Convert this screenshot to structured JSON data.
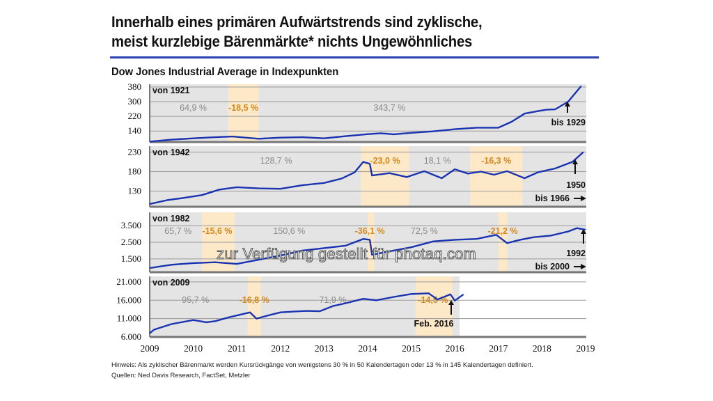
{
  "header": {
    "title_line1": "Innerhalb eines primären Aufwärtstrends sind zyklische,",
    "title_line2": "meist kurzlebige Bärenmärkte* nichts Ungewöhnliches",
    "subtitle": "Dow Jones Industrial Average in Indexpunkten"
  },
  "footer": {
    "note": "Hinweis: Als zyklischer Bärenmarkt werden Kursrückgänge von wenigstens 30 % in 50 Kalendertagen oder 13 % in 145 Kalendertagen definiert.",
    "sources": "Quellen: Ned Davis Research, FactSet, Metzler"
  },
  "watermark": "zur Verfügung gestellt für photaq.com",
  "colors": {
    "line": "#1a33b0",
    "panel_bg": "#e4e4e4",
    "bear_band": "#fde9c8",
    "bull_label": "#8a8a8a",
    "bear_label": "#d4871c",
    "rule": "#2a3fb0"
  },
  "chart_data": {
    "type": "line",
    "title": "Dow Jones Industrial Average in Indexpunkten",
    "x_axis": {
      "description": "shared relative time axis, aligned to the 2009 panel",
      "ticks": [
        "2009",
        "2010",
        "2011",
        "2012",
        "2013",
        "2014",
        "2015",
        "2016",
        "2017",
        "2018",
        "2019"
      ],
      "range": [
        2009,
        2019
      ]
    },
    "panels": [
      {
        "label": "von 1921",
        "end_label": "bis 1929",
        "yticks": [
          "380",
          "300",
          "220",
          "140"
        ],
        "ylim": [
          80,
          395
        ],
        "bands": [
          {
            "type": "bear",
            "from": 2010.8,
            "to": 2011.5,
            "label": "-18,5 %"
          }
        ],
        "phase_labels": [
          {
            "type": "bull",
            "x": 2010.0,
            "label": "64,9 %"
          },
          {
            "type": "bear",
            "x": 2011.15,
            "label": "-18,5 %"
          },
          {
            "type": "bull",
            "x": 2014.5,
            "label": "343,7 %"
          }
        ],
        "series": {
          "x": [
            2009,
            2009.5,
            2010,
            2010.5,
            2010.9,
            2011.2,
            2011.5,
            2012,
            2012.5,
            2013,
            2013.5,
            2014,
            2014.3,
            2014.6,
            2015,
            2015.5,
            2016,
            2016.5,
            2017,
            2017.3,
            2017.6,
            2017.9,
            2018.1,
            2018.3,
            2018.6,
            2018.9
          ],
          "y": [
            82,
            93,
            100,
            106,
            110,
            104,
            98,
            104,
            106,
            100,
            112,
            123,
            128,
            122,
            130,
            138,
            150,
            158,
            158,
            190,
            235,
            248,
            256,
            258,
            300,
            385
          ]
        }
      },
      {
        "label": "von 1942",
        "end_label": "1950",
        "end_label2": "bis 1966",
        "yticks": [
          "230",
          "180",
          "130"
        ],
        "ylim": [
          90,
          245
        ],
        "bands": [
          {
            "type": "bear",
            "from": 2013.85,
            "to": 2014.95,
            "label": "-23,0 %"
          },
          {
            "type": "bear",
            "from": 2016.35,
            "to": 2017.55,
            "label": "-16,3 %"
          }
        ],
        "phase_labels": [
          {
            "type": "bull",
            "x": 2011.9,
            "label": "128,7 %"
          },
          {
            "type": "bear",
            "x": 2014.4,
            "label": "-23,0 %"
          },
          {
            "type": "bull",
            "x": 2015.6,
            "label": "18,1 %"
          },
          {
            "type": "bear",
            "x": 2016.95,
            "label": "-16,3 %"
          }
        ],
        "series": {
          "x": [
            2009,
            2009.4,
            2009.8,
            2010.2,
            2010.6,
            2011,
            2011.5,
            2012,
            2012.5,
            2013,
            2013.4,
            2013.7,
            2013.9,
            2014.05,
            2014.1,
            2014.5,
            2014.9,
            2015.3,
            2015.7,
            2016.0,
            2016.3,
            2016.6,
            2016.9,
            2017.2,
            2017.6,
            2017.9,
            2018.3,
            2018.7,
            2018.95
          ],
          "y": [
            97,
            107,
            113,
            120,
            134,
            140,
            137,
            136,
            145,
            151,
            162,
            178,
            205,
            200,
            170,
            176,
            166,
            181,
            163,
            186,
            175,
            180,
            172,
            181,
            163,
            178,
            188,
            205,
            230
          ]
        }
      },
      {
        "label": "von 1982",
        "end_label": "1992",
        "end_label2": "bis 2000",
        "yticks": [
          "3.500",
          "2.500",
          "1.500"
        ],
        "ylim": [
          700,
          4300
        ],
        "bands": [
          {
            "type": "bear",
            "from": 2010.2,
            "to": 2010.95,
            "label": "-15,6 %"
          },
          {
            "type": "bear",
            "from": 2014.0,
            "to": 2014.15,
            "label": "-36,1 %"
          },
          {
            "type": "bear",
            "from": 2017.0,
            "to": 2017.2,
            "label": "-21,2 %"
          }
        ],
        "phase_labels": [
          {
            "type": "bull",
            "x": 2009.65,
            "label": "65,7 %"
          },
          {
            "type": "bear",
            "x": 2010.55,
            "label": "-15,6 %"
          },
          {
            "type": "bull",
            "x": 2012.2,
            "label": "150,6 %"
          },
          {
            "type": "bear",
            "x": 2014.05,
            "label": "-36,1 %"
          },
          {
            "type": "bull",
            "x": 2015.3,
            "label": "72,5 %"
          },
          {
            "type": "bear",
            "x": 2017.1,
            "label": "-21,2 %"
          }
        ],
        "series": {
          "x": [
            2009,
            2009.5,
            2010,
            2010.5,
            2011,
            2011.5,
            2012,
            2012.5,
            2013,
            2013.5,
            2013.9,
            2014.05,
            2014.1,
            2014.5,
            2015,
            2015.5,
            2016,
            2016.5,
            2016.95,
            2017.2,
            2017.5,
            2017.8,
            2018.2,
            2018.6,
            2018.8,
            2019
          ],
          "y": [
            950,
            1150,
            1250,
            1300,
            1200,
            1450,
            1700,
            2000,
            2150,
            2300,
            2700,
            2650,
            1750,
            1950,
            2200,
            2550,
            2650,
            2700,
            2950,
            2450,
            2650,
            2800,
            2900,
            3150,
            3350,
            3250
          ]
        }
      },
      {
        "label": "von 2009",
        "end_label": "Feb. 2016",
        "yticks": [
          "21.000",
          "16.000",
          "11.000",
          "6.000"
        ],
        "ylim": [
          6000,
          22500
        ],
        "bands": [
          {
            "type": "bear",
            "from": 2011.25,
            "to": 2011.55,
            "label": "-16,8 %"
          },
          {
            "type": "bear",
            "from": 2015.1,
            "to": 2015.95,
            "label": "-14,5 %"
          }
        ],
        "phase_labels": [
          {
            "type": "bull",
            "x": 2010.05,
            "label": "95,7 %"
          },
          {
            "type": "bear",
            "x": 2011.4,
            "label": "-16,8 %"
          },
          {
            "type": "bull",
            "x": 2013.2,
            "label": "71,9 %"
          },
          {
            "type": "bear",
            "x": 2015.5,
            "label": "-14,5 %"
          }
        ],
        "series": {
          "x": [
            2009,
            2009.1,
            2009.5,
            2010,
            2010.3,
            2010.5,
            2010.8,
            2011.3,
            2011.45,
            2011.7,
            2012,
            2012.3,
            2012.6,
            2012.9,
            2013.2,
            2013.5,
            2013.9,
            2014.2,
            2014.6,
            2015,
            2015.4,
            2015.6,
            2015.9,
            2016.0,
            2016.2
          ],
          "y": [
            7000,
            8000,
            9500,
            10600,
            10000,
            10300,
            11300,
            12700,
            11000,
            11800,
            12700,
            12900,
            13100,
            13000,
            14400,
            15200,
            16400,
            16000,
            16900,
            17700,
            17900,
            16200,
            17600,
            15900,
            17600
          ]
        }
      }
    ],
    "annotations": [
      "bis 1929",
      "1950",
      "bis 1966",
      "1992",
      "bis 2000",
      "Feb. 2016"
    ]
  }
}
